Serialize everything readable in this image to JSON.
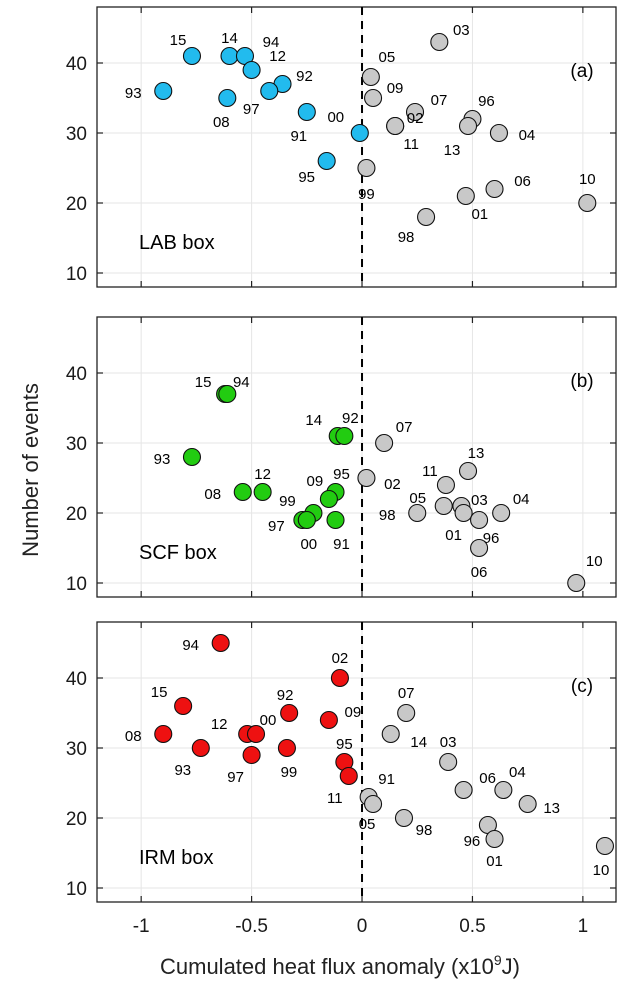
{
  "chart_data": [
    {
      "type": "scatter",
      "panel": "(a)",
      "box_label": "LAB box",
      "highlight_color": "#22bbee",
      "other_color": "#c8c8c8",
      "xlim": [
        -1.2,
        1.15
      ],
      "ylim": [
        8,
        48
      ],
      "points": [
        {
          "label": "15",
          "x": -0.77,
          "y": 41,
          "group": "highlight"
        },
        {
          "label": "14",
          "x": -0.6,
          "y": 41,
          "group": "highlight"
        },
        {
          "label": "94",
          "x": -0.53,
          "y": 41,
          "group": "highlight"
        },
        {
          "label": "12",
          "x": -0.5,
          "y": 39,
          "group": "highlight"
        },
        {
          "label": "92",
          "x": -0.36,
          "y": 37,
          "group": "highlight"
        },
        {
          "label": "97",
          "x": -0.42,
          "y": 36,
          "group": "highlight"
        },
        {
          "label": "93",
          "x": -0.9,
          "y": 36,
          "group": "highlight"
        },
        {
          "label": "08",
          "x": -0.61,
          "y": 35,
          "group": "highlight"
        },
        {
          "label": "91",
          "x": -0.25,
          "y": 33,
          "group": "highlight"
        },
        {
          "label": "00",
          "x": -0.01,
          "y": 30,
          "group": "highlight"
        },
        {
          "label": "95",
          "x": -0.16,
          "y": 26,
          "group": "highlight"
        },
        {
          "label": "03",
          "x": 0.35,
          "y": 43,
          "group": "other"
        },
        {
          "label": "05",
          "x": 0.04,
          "y": 38,
          "group": "other"
        },
        {
          "label": "09",
          "x": 0.05,
          "y": 35,
          "group": "other"
        },
        {
          "label": "07",
          "x": 0.24,
          "y": 33,
          "group": "other"
        },
        {
          "label": "02",
          "x": 0.15,
          "y": 31,
          "group": "other"
        },
        {
          "label": "96",
          "x": 0.5,
          "y": 32,
          "group": "other"
        },
        {
          "label": "13",
          "x": 0.48,
          "y": 31,
          "group": "other"
        },
        {
          "label": "04",
          "x": 0.62,
          "y": 30,
          "group": "other"
        },
        {
          "label": "11",
          "x": 0.15,
          "y": 31,
          "group": "other"
        },
        {
          "label": "99",
          "x": 0.02,
          "y": 25,
          "group": "other"
        },
        {
          "label": "06",
          "x": 0.6,
          "y": 22,
          "group": "other"
        },
        {
          "label": "01",
          "x": 0.47,
          "y": 21,
          "group": "other"
        },
        {
          "label": "10",
          "x": 1.02,
          "y": 20,
          "group": "other"
        },
        {
          "label": "98",
          "x": 0.29,
          "y": 18,
          "group": "other"
        }
      ]
    },
    {
      "type": "scatter",
      "panel": "(b)",
      "box_label": "SCF box",
      "highlight_color": "#22cc11",
      "other_color": "#c8c8c8",
      "xlim": [
        -1.2,
        1.15
      ],
      "ylim": [
        8,
        48
      ],
      "points": [
        {
          "label": "15",
          "x": -0.62,
          "y": 37,
          "group": "highlight"
        },
        {
          "label": "94",
          "x": -0.61,
          "y": 37,
          "group": "highlight"
        },
        {
          "label": "14",
          "x": -0.11,
          "y": 31,
          "group": "highlight"
        },
        {
          "label": "92",
          "x": -0.08,
          "y": 31,
          "group": "highlight"
        },
        {
          "label": "93",
          "x": -0.77,
          "y": 28,
          "group": "highlight"
        },
        {
          "label": "12",
          "x": -0.45,
          "y": 23,
          "group": "highlight"
        },
        {
          "label": "08",
          "x": -0.54,
          "y": 23,
          "group": "highlight"
        },
        {
          "label": "95",
          "x": -0.12,
          "y": 23,
          "group": "highlight"
        },
        {
          "label": "09",
          "x": -0.15,
          "y": 22,
          "group": "highlight"
        },
        {
          "label": "99",
          "x": -0.22,
          "y": 20,
          "group": "highlight"
        },
        {
          "label": "97",
          "x": -0.27,
          "y": 19,
          "group": "highlight"
        },
        {
          "label": "00",
          "x": -0.25,
          "y": 19,
          "group": "highlight"
        },
        {
          "label": "91",
          "x": -0.12,
          "y": 19,
          "group": "highlight"
        },
        {
          "label": "07",
          "x": 0.1,
          "y": 30,
          "group": "other"
        },
        {
          "label": "13",
          "x": 0.48,
          "y": 26,
          "group": "other"
        },
        {
          "label": "02",
          "x": 0.02,
          "y": 25,
          "group": "other"
        },
        {
          "label": "11",
          "x": 0.38,
          "y": 24,
          "group": "other"
        },
        {
          "label": "05",
          "x": 0.37,
          "y": 21,
          "group": "other"
        },
        {
          "label": "03",
          "x": 0.45,
          "y": 21,
          "group": "other"
        },
        {
          "label": "98",
          "x": 0.25,
          "y": 20,
          "group": "other"
        },
        {
          "label": "01",
          "x": 0.46,
          "y": 20,
          "group": "other"
        },
        {
          "label": "04",
          "x": 0.63,
          "y": 20,
          "group": "other"
        },
        {
          "label": "96",
          "x": 0.53,
          "y": 19,
          "group": "other"
        },
        {
          "label": "06",
          "x": 0.53,
          "y": 15,
          "group": "other"
        },
        {
          "label": "10",
          "x": 0.97,
          "y": 10,
          "group": "other"
        }
      ]
    },
    {
      "type": "scatter",
      "panel": "(c)",
      "box_label": "IRM box",
      "highlight_color": "#ee1111",
      "other_color": "#c8c8c8",
      "xlim": [
        -1.2,
        1.15
      ],
      "ylim": [
        8,
        48
      ],
      "points": [
        {
          "label": "94",
          "x": -0.64,
          "y": 45,
          "group": "highlight"
        },
        {
          "label": "02",
          "x": -0.1,
          "y": 40,
          "group": "highlight"
        },
        {
          "label": "15",
          "x": -0.81,
          "y": 36,
          "group": "highlight"
        },
        {
          "label": "92",
          "x": -0.33,
          "y": 35,
          "group": "highlight"
        },
        {
          "label": "09",
          "x": -0.15,
          "y": 34,
          "group": "highlight"
        },
        {
          "label": "08",
          "x": -0.9,
          "y": 32,
          "group": "highlight"
        },
        {
          "label": "12",
          "x": -0.52,
          "y": 32,
          "group": "highlight"
        },
        {
          "label": "00",
          "x": -0.48,
          "y": 32,
          "group": "highlight"
        },
        {
          "label": "93",
          "x": -0.73,
          "y": 30,
          "group": "highlight"
        },
        {
          "label": "99",
          "x": -0.34,
          "y": 30,
          "group": "highlight"
        },
        {
          "label": "97",
          "x": -0.5,
          "y": 29,
          "group": "highlight"
        },
        {
          "label": "95",
          "x": -0.08,
          "y": 28,
          "group": "highlight"
        },
        {
          "label": "11",
          "x": -0.06,
          "y": 26,
          "group": "highlight"
        },
        {
          "label": "07",
          "x": 0.2,
          "y": 35,
          "group": "other"
        },
        {
          "label": "14",
          "x": 0.13,
          "y": 32,
          "group": "other"
        },
        {
          "label": "03",
          "x": 0.39,
          "y": 28,
          "group": "other"
        },
        {
          "label": "06",
          "x": 0.46,
          "y": 24,
          "group": "other"
        },
        {
          "label": "04",
          "x": 0.64,
          "y": 24,
          "group": "other"
        },
        {
          "label": "91",
          "x": 0.03,
          "y": 23,
          "group": "other"
        },
        {
          "label": "05",
          "x": 0.05,
          "y": 22,
          "group": "other"
        },
        {
          "label": "13",
          "x": 0.75,
          "y": 22,
          "group": "other"
        },
        {
          "label": "98",
          "x": 0.19,
          "y": 20,
          "group": "other"
        },
        {
          "label": "96",
          "x": 0.57,
          "y": 19,
          "group": "other"
        },
        {
          "label": "01",
          "x": 0.6,
          "y": 17,
          "group": "other"
        },
        {
          "label": "10",
          "x": 1.1,
          "y": 16,
          "group": "other"
        }
      ]
    }
  ],
  "axes": {
    "ylabel": "Number of events",
    "xlabel_main": "Cumulated heat flux anomaly (x10",
    "xlabel_sup": "9",
    "xlabel_end": "J)",
    "xticks": [
      -1,
      -0.5,
      0,
      0.5,
      1
    ],
    "xtick_labels": [
      "-1",
      "-0.5",
      "0",
      "0.5",
      "1"
    ],
    "yticks": [
      10,
      20,
      30,
      40
    ],
    "ytick_labels": [
      "10",
      "20",
      "30",
      "40"
    ],
    "grid": true
  }
}
